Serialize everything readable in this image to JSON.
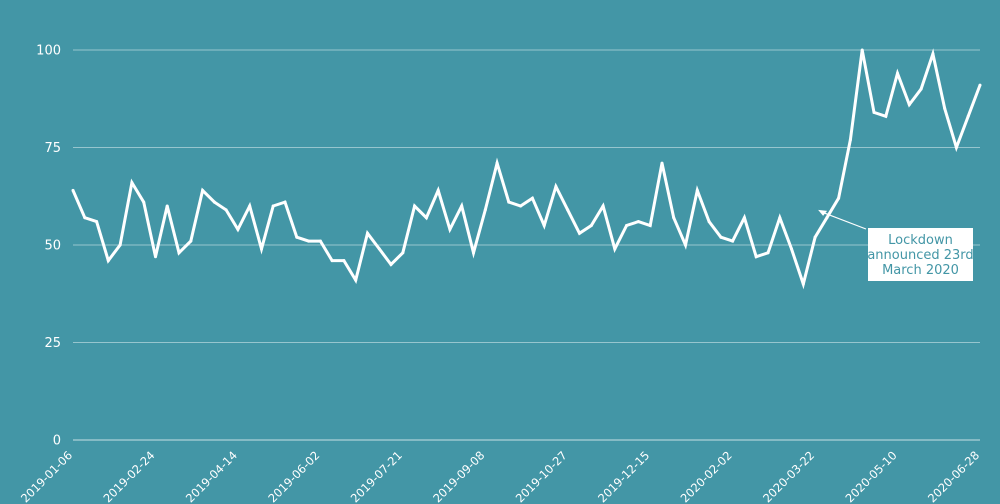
{
  "chart_data": {
    "type": "line",
    "title": "",
    "xlabel": "",
    "ylabel": "",
    "ylim": [
      0,
      100
    ],
    "yticks": [
      0,
      25,
      50,
      75,
      100
    ],
    "grid": true,
    "legend": "none",
    "colors": {
      "background": "#4396a6",
      "line": "#ffffff",
      "annotation_text": "#4396a6"
    },
    "xtick_labels": [
      "2019-01-06",
      "2019-02-24",
      "2019-04-14",
      "2019-06-02",
      "2019-07-21",
      "2019-09-08",
      "2019-10-27",
      "2019-12-15",
      "2020-02-02",
      "2020-03-22",
      "2020-05-10",
      "2020-06-28"
    ],
    "x": [
      "2019-01-06",
      "2019-01-13",
      "2019-01-20",
      "2019-01-27",
      "2019-02-03",
      "2019-02-10",
      "2019-02-17",
      "2019-02-24",
      "2019-03-03",
      "2019-03-10",
      "2019-03-17",
      "2019-03-24",
      "2019-03-31",
      "2019-04-07",
      "2019-04-14",
      "2019-04-21",
      "2019-04-28",
      "2019-05-05",
      "2019-05-12",
      "2019-05-19",
      "2019-05-26",
      "2019-06-02",
      "2019-06-09",
      "2019-06-16",
      "2019-06-23",
      "2019-06-30",
      "2019-07-07",
      "2019-07-14",
      "2019-07-21",
      "2019-07-28",
      "2019-08-04",
      "2019-08-11",
      "2019-08-18",
      "2019-08-25",
      "2019-09-01",
      "2019-09-08",
      "2019-09-15",
      "2019-09-22",
      "2019-09-29",
      "2019-10-06",
      "2019-10-13",
      "2019-10-20",
      "2019-10-27",
      "2019-11-03",
      "2019-11-10",
      "2019-11-17",
      "2019-11-24",
      "2019-12-01",
      "2019-12-08",
      "2019-12-15",
      "2019-12-22",
      "2019-12-29",
      "2020-01-05",
      "2020-01-12",
      "2020-01-19",
      "2020-01-26",
      "2020-02-02",
      "2020-02-09",
      "2020-02-16",
      "2020-02-23",
      "2020-03-01",
      "2020-03-08",
      "2020-03-15",
      "2020-03-22",
      "2020-03-29",
      "2020-04-05",
      "2020-04-12",
      "2020-04-19",
      "2020-04-26",
      "2020-05-03",
      "2020-05-10",
      "2020-05-17",
      "2020-05-24",
      "2020-05-31",
      "2020-06-07",
      "2020-06-14",
      "2020-06-21",
      "2020-06-28"
    ],
    "series": [
      {
        "values": [
          64,
          57,
          56,
          46,
          50,
          66,
          61,
          47,
          60,
          48,
          51,
          64,
          61,
          59,
          54,
          60,
          49,
          60,
          61,
          52,
          51,
          51,
          46,
          46,
          41,
          53,
          49,
          45,
          48,
          60,
          57,
          64,
          54,
          60,
          48,
          59,
          71,
          61,
          60,
          62,
          55,
          65,
          59,
          53,
          55,
          60,
          49,
          55,
          56,
          55,
          71,
          57,
          50,
          64,
          56,
          52,
          51,
          57,
          47,
          48,
          57,
          49,
          40,
          52,
          57,
          62,
          77,
          100,
          84,
          83,
          94,
          86,
          90,
          99,
          85,
          75,
          83,
          91
        ]
      }
    ],
    "annotations": [
      {
        "lines": [
          "Lockdown",
          "announced 23rd",
          "March 2020"
        ],
        "x": "2020-03-22",
        "y": 59
      }
    ]
  }
}
